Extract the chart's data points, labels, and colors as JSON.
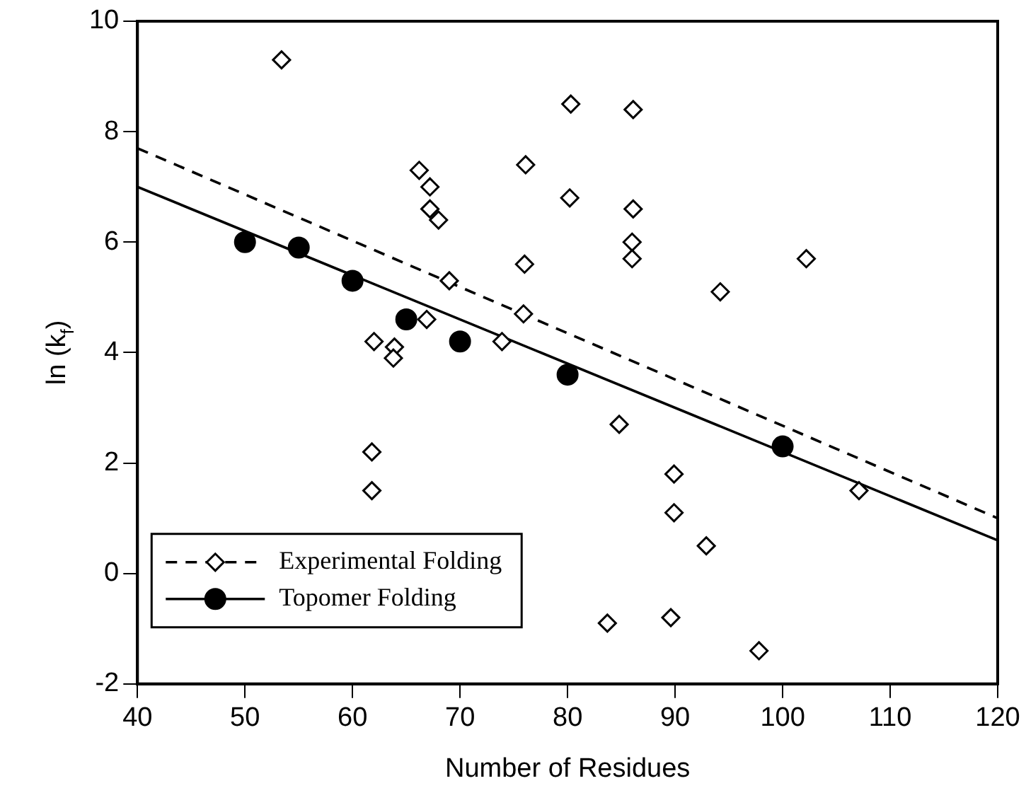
{
  "chart_data": {
    "type": "scatter",
    "xlabel": "Number of Residues",
    "ylabel": "ln (k$_{f}$)",
    "xlim": [
      40,
      120
    ],
    "xticks": [
      40,
      50,
      60,
      70,
      80,
      90,
      100,
      110,
      120
    ],
    "ylim": [
      -2,
      10
    ],
    "yticks": [
      -2,
      0,
      2,
      4,
      6,
      8,
      10
    ],
    "grid": false,
    "legend": "bottom left",
    "series": [
      {
        "name": "Experimental Folding",
        "type": "scatter",
        "marker": "diamond",
        "color": "#000000",
        "x": [
          53.4,
          80.3,
          86.1,
          76.1,
          80.2,
          66.2,
          67.2,
          67.2,
          68.0,
          76.0,
          69.0,
          66.9,
          75.9,
          73.9,
          62.0,
          63.9,
          63.8,
          61.8,
          61.8,
          83.7,
          86.1,
          86.0,
          86.0,
          102.2,
          94.2,
          84.8,
          89.9,
          89.9,
          92.9,
          89.6,
          97.8,
          107.1
        ],
        "values": [
          9.3,
          8.5,
          8.4,
          7.4,
          6.8,
          7.3,
          7.0,
          6.6,
          6.4,
          5.6,
          5.3,
          4.6,
          4.7,
          4.2,
          4.2,
          4.1,
          3.9,
          2.2,
          1.5,
          -0.9,
          6.6,
          6.0,
          5.7,
          5.7,
          5.1,
          2.7,
          1.8,
          1.1,
          0.5,
          -0.8,
          -1.4,
          1.5
        ]
      },
      {
        "type": "line",
        "line_style": "dashed",
        "marker": "none",
        "color": "#000000",
        "x": [
          40,
          120
        ],
        "values": [
          7.7,
          1.0
        ]
      },
      {
        "name": "Topomer Folding",
        "type": "scatter",
        "marker": "circle",
        "color": "#000000",
        "x": [
          50,
          55,
          60,
          65,
          70,
          80,
          100
        ],
        "values": [
          6.0,
          5.9,
          5.3,
          4.6,
          4.2,
          3.6,
          2.3
        ]
      },
      {
        "type": "line",
        "line_style": "solid",
        "marker": "none",
        "color": "#000000",
        "x": [
          40,
          120
        ],
        "values": [
          7.0,
          0.6
        ]
      }
    ]
  }
}
